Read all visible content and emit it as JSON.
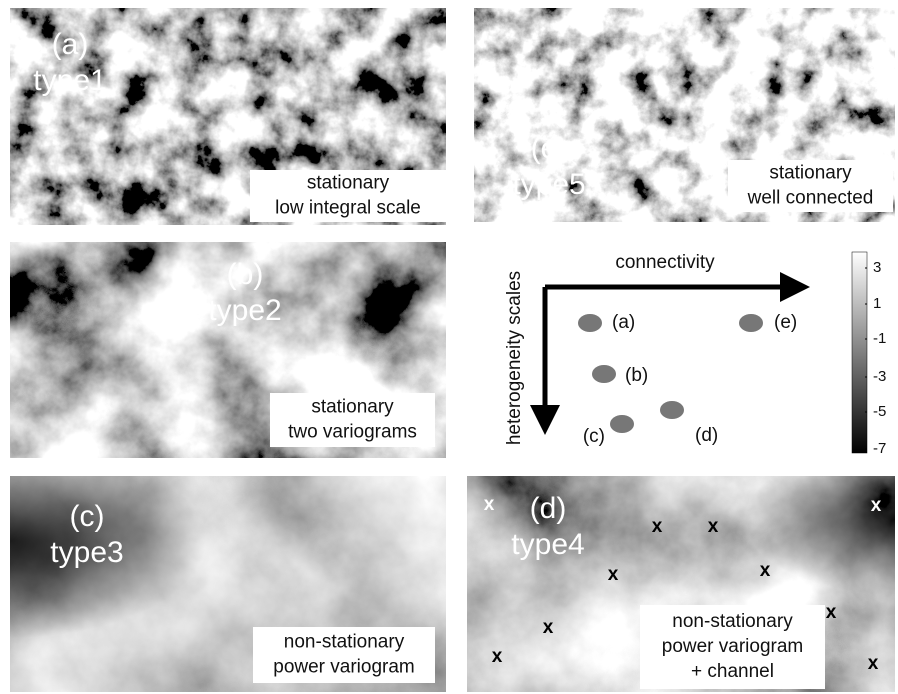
{
  "panels": [
    {
      "label": "(a)",
      "type": "type1",
      "caption": [
        "stationary",
        "low integral scale"
      ]
    },
    {
      "label": "(e)",
      "type": "type5",
      "caption": [
        "stationary",
        "well connected"
      ]
    },
    {
      "label": "(b)",
      "type": "type2",
      "caption": [
        "stationary",
        "two variograms"
      ]
    },
    {
      "label": "(c)",
      "type": "type3",
      "caption": [
        "non-stationary",
        "power variogram"
      ]
    },
    {
      "label": "(d)",
      "type": "type4",
      "caption": [
        "non-stationary",
        "power variogram",
        "+ channel"
      ]
    }
  ],
  "markers": [
    "x",
    "x",
    "x",
    "x",
    "x",
    "x",
    "x",
    "x",
    "x",
    "x"
  ],
  "diagram": {
    "x_axis": "connectivity",
    "y_axis": "heterogeneity scales",
    "points": [
      "(a)",
      "(e)",
      "(b)",
      "(c)",
      "(d)"
    ]
  },
  "colorbar": {
    "ticks": [
      3,
      1,
      -1,
      -3,
      -5,
      -7
    ]
  }
}
